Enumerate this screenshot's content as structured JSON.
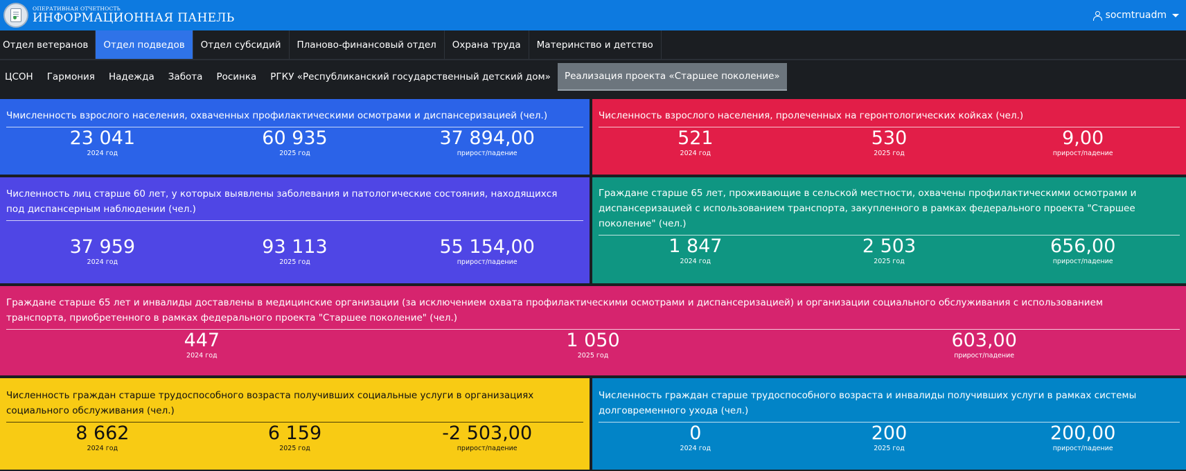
{
  "header": {
    "subtitle": "ОПЕРАТИВНАЯ ОТЧЕТНОСТЬ",
    "title": "ИНФОРМАЦИОННАЯ ПАНЕЛЬ",
    "username": "socmtruadm"
  },
  "nav_primary": [
    {
      "label": "Отдел ветеранов",
      "active": false
    },
    {
      "label": "Отдел подведов",
      "active": true
    },
    {
      "label": "Отдел субсидий",
      "active": false
    },
    {
      "label": "Планово-финансовый отдел",
      "active": false
    },
    {
      "label": "Охрана труда",
      "active": false
    },
    {
      "label": "Материнство и детство",
      "active": false
    }
  ],
  "nav_secondary": [
    {
      "label": "ЦСОН",
      "active": false
    },
    {
      "label": "Гармония",
      "active": false
    },
    {
      "label": "Надежда",
      "active": false
    },
    {
      "label": "Забота",
      "active": false
    },
    {
      "label": "Росинка",
      "active": false
    },
    {
      "label": "РГКУ «Республиканский государственный детский дом»",
      "active": false
    },
    {
      "label": "Реализация проекта «Старшее поколение»",
      "active": true
    }
  ],
  "colors": {
    "blue": "#2b63e8",
    "red": "#e21e48",
    "violet": "#4f46e5",
    "teal": "#0f9682",
    "pink": "#d6246e",
    "yellow": "#f8cb14",
    "sky": "#0284c7"
  },
  "panels": [
    {
      "title": "Чмисленность взрослого населения, охваченных профилактическими осмотрами и диспансеризацией (чел.)",
      "color": "blue",
      "stats": [
        {
          "value": "23 041",
          "label": "2024 год"
        },
        {
          "value": "60 935",
          "label": "2025 год"
        },
        {
          "value": "37 894,00",
          "label": "прирост/падение"
        }
      ]
    },
    {
      "title": "Численность взрослого населения, пролеченных на геронтологических койках (чел.)",
      "color": "red",
      "stats": [
        {
          "value": "521",
          "label": "2024 год"
        },
        {
          "value": "530",
          "label": "2025 год"
        },
        {
          "value": "9,00",
          "label": "прирост/падение"
        }
      ]
    },
    {
      "title": "Численность лиц старше 60 лет, у которых выявлены заболевания и патологические состояния, находящихся под диспансерным наблюдении (чел.)",
      "color": "violet",
      "stats": [
        {
          "value": "37 959",
          "label": "2024 год"
        },
        {
          "value": "93 113",
          "label": "2025 год"
        },
        {
          "value": "55 154,00",
          "label": "прирост/падение"
        }
      ]
    },
    {
      "title": "Граждане старше 65 лет, проживающие в сельской местности, охвачены профилактическими осмотрами и диспансеризацией с использованием транспорта, закупленного в рамках федерального проекта \"Старшее поколение\" (чел.)",
      "color": "teal",
      "stats": [
        {
          "value": "1 847",
          "label": "2024 год"
        },
        {
          "value": "2 503",
          "label": "2025 год"
        },
        {
          "value": "656,00",
          "label": "прирост/падение"
        }
      ]
    },
    {
      "title": "Граждане старше 65 лет и инвалиды доставлены в медицинские организации (за исключением охвата профилактическими осмотрами и диспансеризацией) и организации социального обслуживания с использованием транспорта, приобретенного в рамках федерального проекта \"Старшее поколение\" (чел.)",
      "color": "pink",
      "stats": [
        {
          "value": "447",
          "label": "2024 год"
        },
        {
          "value": "1 050",
          "label": "2025 год"
        },
        {
          "value": "603,00",
          "label": "прирост/падение"
        }
      ]
    },
    {
      "title": "Численность граждан старше трудоспособного возраста получивших социальные услуги в организациях социального обслуживания (чел.)",
      "color": "yellow",
      "stats": [
        {
          "value": "8 662",
          "label": "2024 год"
        },
        {
          "value": "6 159",
          "label": "2025 год"
        },
        {
          "value": "-2 503,00",
          "label": "прирост/падение"
        }
      ]
    },
    {
      "title": "Численность граждан старше трудоспособного возраста и инвалиды получивших услуги в рамках системы долговременного ухода (чел.)",
      "color": "sky",
      "stats": [
        {
          "value": "0",
          "label": "2024 год"
        },
        {
          "value": "200",
          "label": "2025 год"
        },
        {
          "value": "200,00",
          "label": "прирост/падение"
        }
      ]
    }
  ]
}
